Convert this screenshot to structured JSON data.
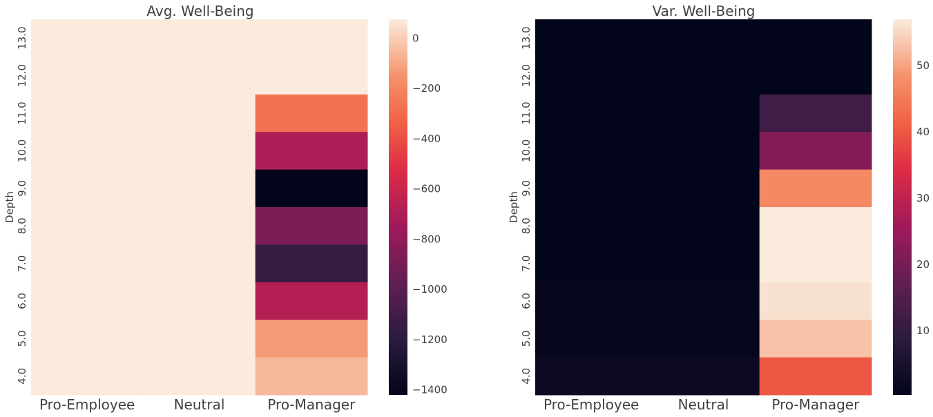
{
  "chart_data": [
    {
      "type": "heatmap",
      "title": "Avg. Well-Being",
      "ylabel": "Depth",
      "xlabel": "",
      "categories": [
        "Pro-Employee",
        "Neutral",
        "Pro-Manager"
      ],
      "y": [
        "13.0",
        "12.0",
        "11.0",
        "10.0",
        "9.0",
        "8.0",
        "7.0",
        "6.0",
        "5.0",
        "4.0"
      ],
      "values": [
        [
          75,
          75,
          75
        ],
        [
          75,
          75,
          75
        ],
        [
          75,
          75,
          -270
        ],
        [
          75,
          75,
          -700
        ],
        [
          75,
          75,
          -1420
        ],
        [
          75,
          75,
          -880
        ],
        [
          75,
          75,
          -1150
        ],
        [
          75,
          75,
          -680
        ],
        [
          75,
          75,
          -130
        ],
        [
          75,
          75,
          -55
        ]
      ],
      "colorbar": {
        "min": -1420,
        "max": 75,
        "ticks": [
          0,
          -200,
          -400,
          -600,
          -800,
          -1000,
          -1200,
          -1400
        ]
      }
    },
    {
      "type": "heatmap",
      "title": "Var. Well-Being",
      "ylabel": "Depth",
      "xlabel": "",
      "categories": [
        "Pro-Employee",
        "Neutral",
        "Pro-Manager"
      ],
      "y": [
        "13.0",
        "12.0",
        "11.0",
        "10.0",
        "9.0",
        "8.0",
        "7.0",
        "6.0",
        "5.0",
        "4.0"
      ],
      "values": [
        [
          0.3,
          0.3,
          0.3
        ],
        [
          0.3,
          0.3,
          0.3
        ],
        [
          0.3,
          0.3,
          12
        ],
        [
          0.3,
          0.3,
          22
        ],
        [
          0.3,
          0.3,
          47
        ],
        [
          0.3,
          0.3,
          57
        ],
        [
          0.3,
          0.3,
          57
        ],
        [
          1,
          1,
          56
        ],
        [
          1,
          1,
          53
        ],
        [
          2.5,
          2.5,
          40
        ]
      ],
      "colorbar": {
        "min": 0.3,
        "max": 57,
        "ticks": [
          50,
          40,
          30,
          20,
          10
        ]
      }
    }
  ]
}
